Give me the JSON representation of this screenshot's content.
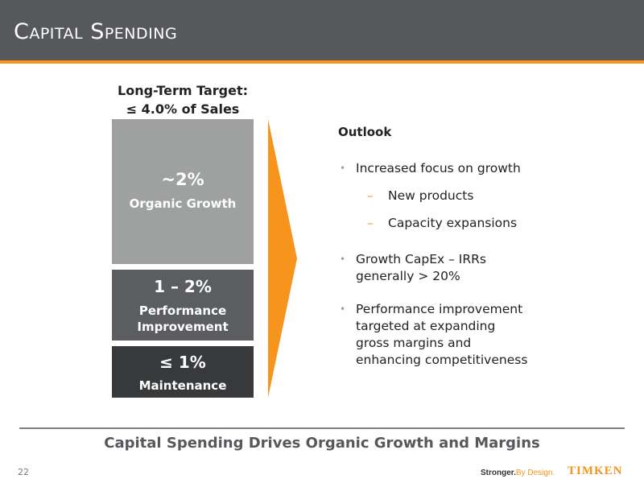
{
  "header": {
    "title": "Capital Spending"
  },
  "target": {
    "line1": "Long-Term Target:",
    "line2": "≤ 4.0% of Sales"
  },
  "blocks": [
    {
      "pct": "~2%",
      "label": "Organic Growth"
    },
    {
      "pct": "1 – 2%",
      "label_line1": "Performance",
      "label_line2": "Improvement"
    },
    {
      "pct": "≤ 1%",
      "label": "Maintenance"
    }
  ],
  "outlook": {
    "heading": "Outlook",
    "bullet1": "Increased focus on growth",
    "sub1": "New products",
    "sub2": "Capacity expansions",
    "bullet2_line1": "Growth CapEx – IRRs",
    "bullet2_line2": "generally > 20%",
    "bullet3_line1": "Performance improvement",
    "bullet3_line2": "targeted at expanding",
    "bullet3_line3": "gross margins and",
    "bullet3_line4": "enhancing competitiveness"
  },
  "footer": {
    "tagline": "Capital Spending Drives Organic Growth and Margins",
    "page_number": "22",
    "slogan_part1": "Stronger.",
    "slogan_part2": "By Design.",
    "logo_text": "TIMKEN"
  },
  "colors": {
    "accent": "#f7941d",
    "header_bg": "#56585b",
    "growth": "#9fa1a1",
    "performance": "#5b5d60",
    "maintenance": "#37393b"
  }
}
